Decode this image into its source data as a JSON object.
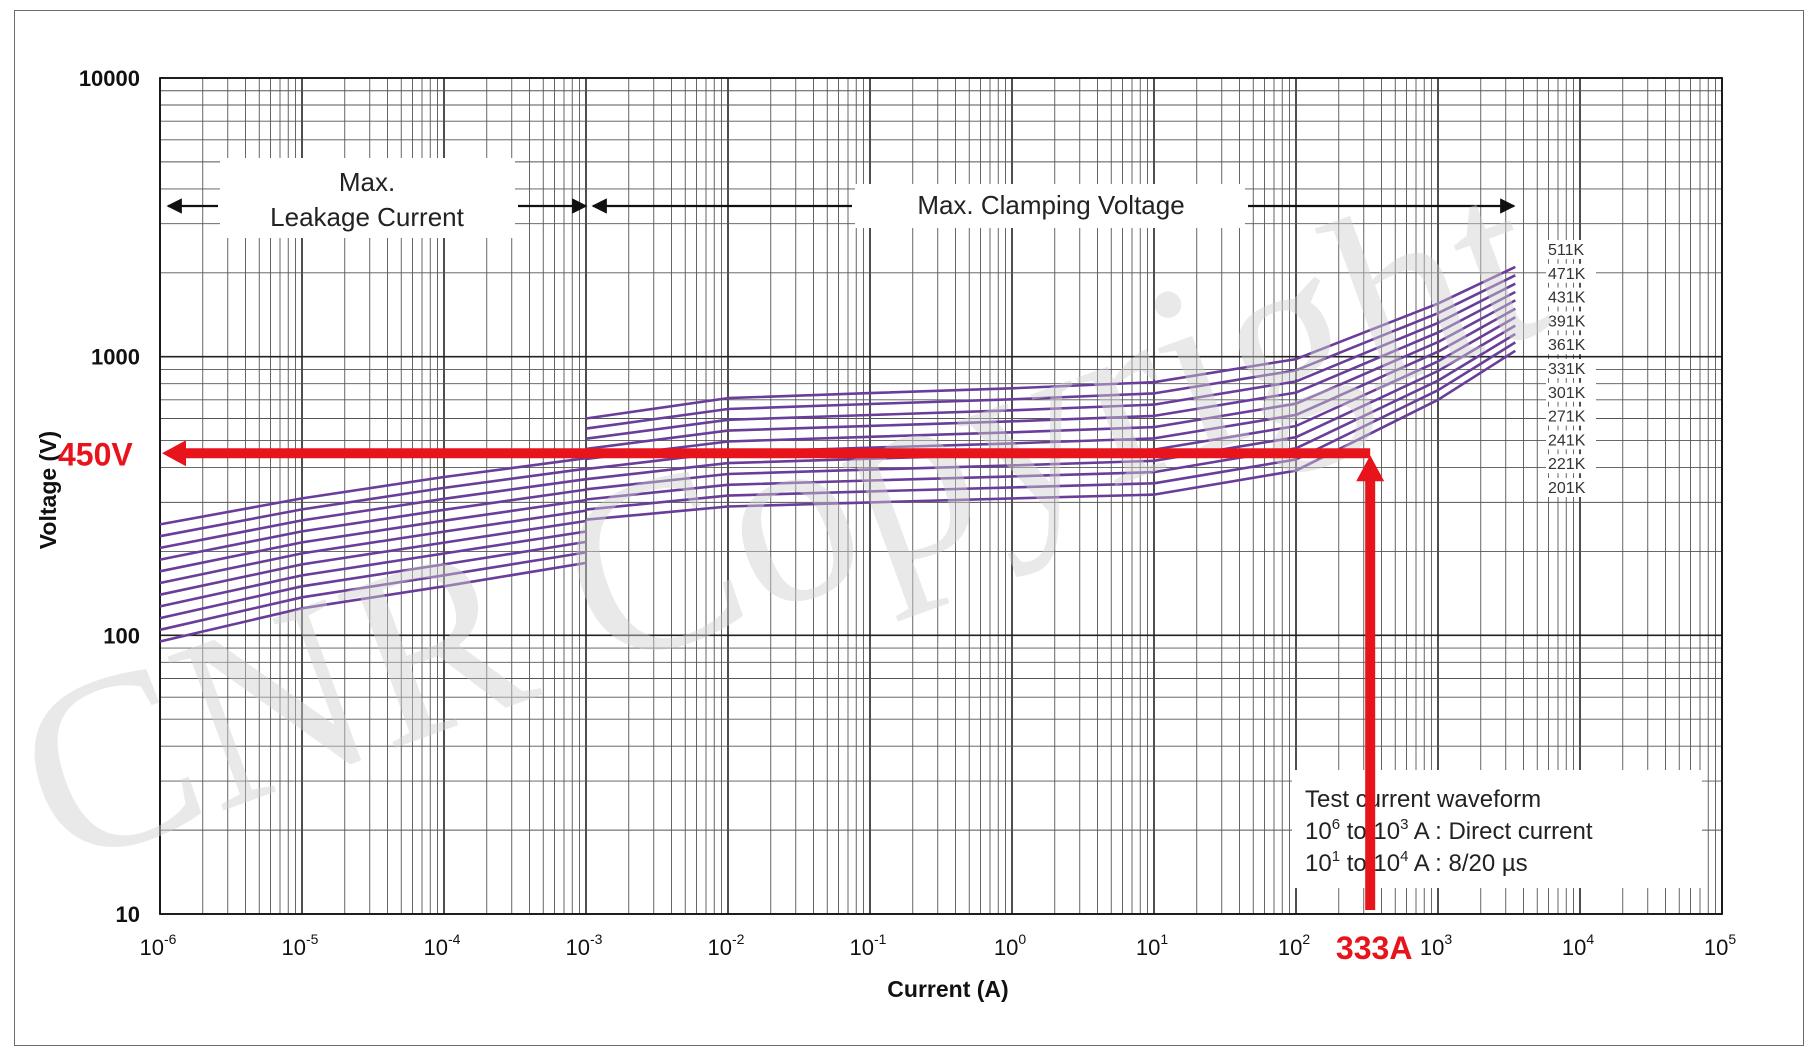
{
  "chart_data": {
    "type": "line",
    "title": "",
    "xlabel": "Current (A)",
    "ylabel": "Voltage (V)",
    "xscale": "log",
    "yscale": "log",
    "xlim": [
      1e-06,
      100000
    ],
    "ylim": [
      10,
      10000
    ],
    "grid": true,
    "x_ticks": [
      {
        "base": "10",
        "exp": "-6"
      },
      {
        "base": "10",
        "exp": "-5"
      },
      {
        "base": "10",
        "exp": "-4"
      },
      {
        "base": "10",
        "exp": "-3"
      },
      {
        "base": "10",
        "exp": "-2"
      },
      {
        "base": "10",
        "exp": "-1"
      },
      {
        "base": "10",
        "exp": "0"
      },
      {
        "base": "10",
        "exp": "1"
      },
      {
        "base": "10",
        "exp": "2"
      },
      {
        "base": "10",
        "exp": "3"
      },
      {
        "base": "10",
        "exp": "4"
      },
      {
        "base": "10",
        "exp": "5"
      }
    ],
    "y_ticks": [
      "10",
      "100",
      "1000",
      "10000"
    ],
    "leakage_region": {
      "label_line1": "Max.",
      "label_line2": "Leakage Current",
      "x": [
        1e-06,
        1e-05,
        0.0001,
        0.001
      ],
      "series_low_values": [
        95,
        125,
        150,
        182
      ],
      "series_high_values": [
        250,
        310,
        370,
        432
      ]
    },
    "clamping_region": {
      "label": "Max. Clamping Voltage",
      "x": [
        0.001,
        0.01,
        0.1,
        1,
        10,
        100,
        1000,
        3500
      ],
      "series_low_values": [
        260,
        290,
        300,
        310,
        320,
        390,
        700,
        1050
      ],
      "series_high_values": [
        600,
        710,
        740,
        770,
        810,
        980,
        1550,
        2100
      ]
    },
    "series": [
      {
        "name": "201K"
      },
      {
        "name": "221K"
      },
      {
        "name": "241K"
      },
      {
        "name": "271K"
      },
      {
        "name": "301K"
      },
      {
        "name": "331K"
      },
      {
        "name": "361K"
      },
      {
        "name": "391K"
      },
      {
        "name": "431K"
      },
      {
        "name": "471K"
      },
      {
        "name": "511K"
      }
    ],
    "series_color": "#6a3d9a",
    "note": {
      "title": "Test current waveform",
      "line1_base": "10",
      "line1_exp": "6",
      "line1_mid": " to 10",
      "line1_exp2": "3",
      "line1_rest": " A : Direct current",
      "line2_base": "10",
      "line2_exp": "1",
      "line2_mid": " to 10",
      "line2_exp2": "4",
      "line2_rest": "  A : 8/20 µs"
    },
    "annotation": {
      "voltage_label": "450V",
      "voltage_value": 450,
      "current_label": "333A",
      "current_value": 333,
      "color": "#e8141b"
    },
    "watermark": "CNR Copyright"
  }
}
